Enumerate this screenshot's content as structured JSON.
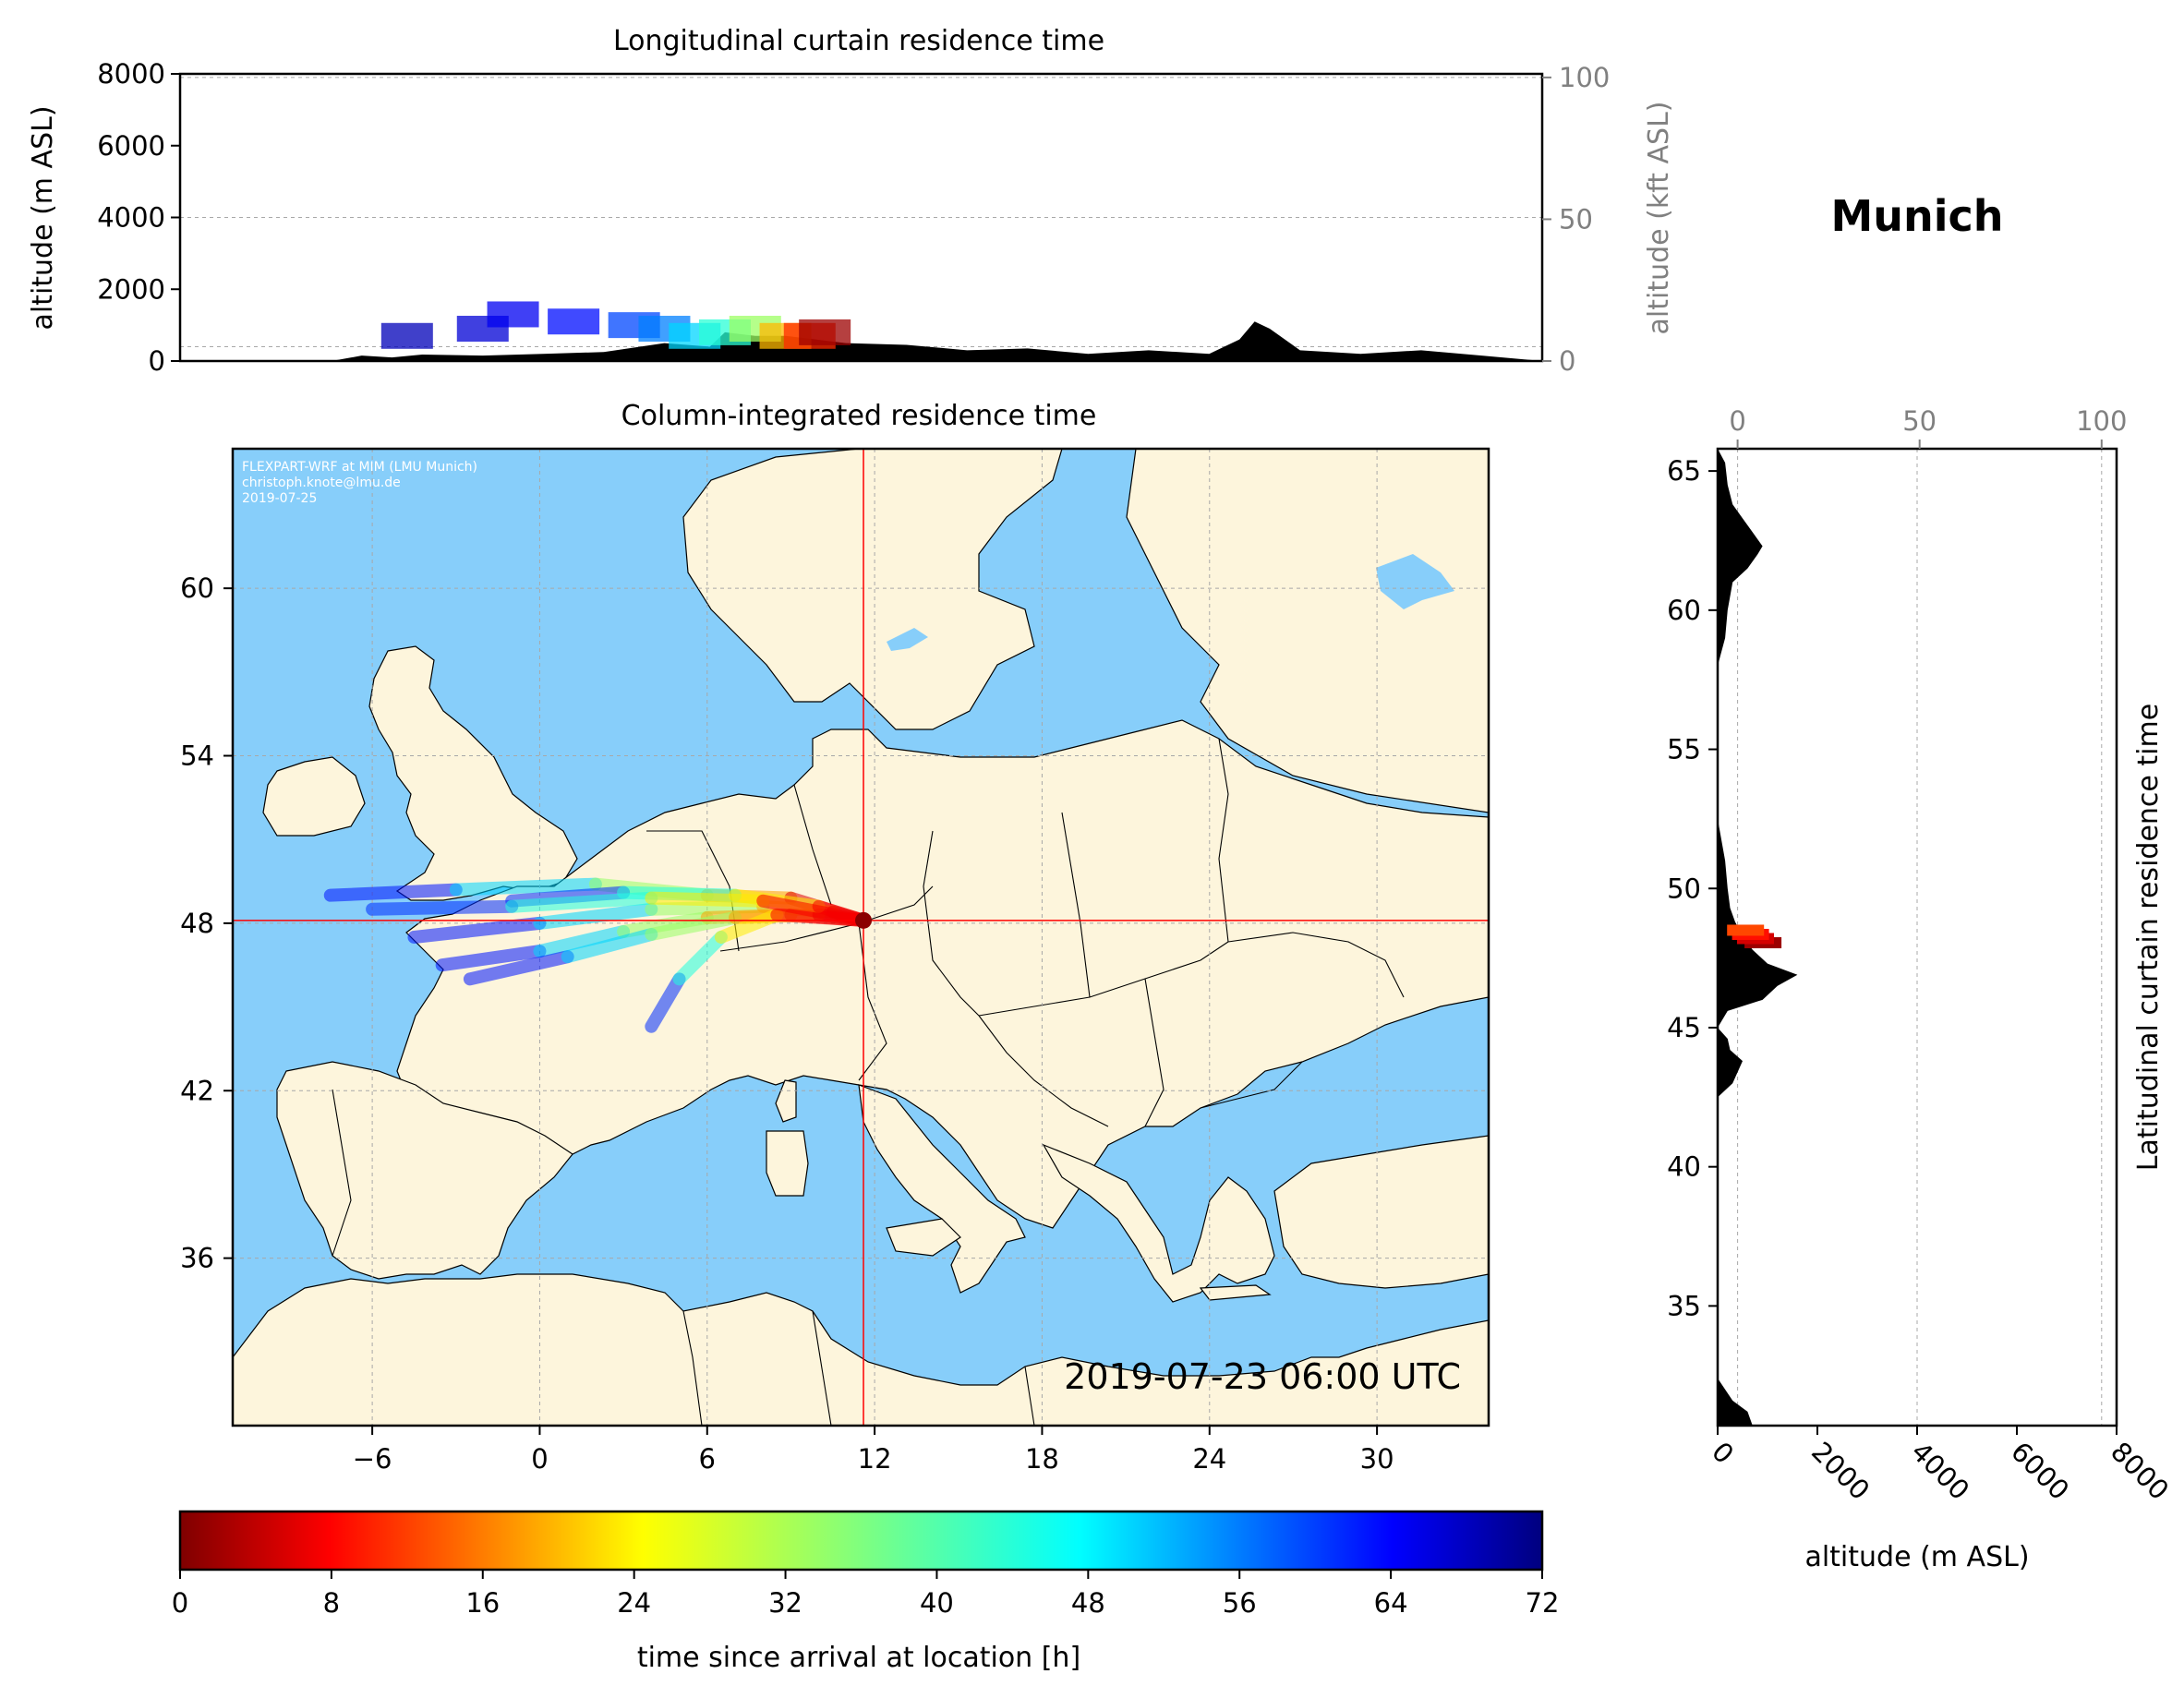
{
  "station": "Munich",
  "timestamp": "2019-07-23 06:00 UTC",
  "watermark": [
    "FLEXPART-WRF at MIM (LMU Munich)",
    "christoph.knote@lmu.de",
    "2019-07-25"
  ],
  "colors": {
    "ocean": "#87cefa",
    "land": "#fdf5dc",
    "terrain": "#000000",
    "crosshair": "#ff0000",
    "colormap": "jet_r"
  },
  "chart_data": [
    {
      "id": "longitudinal",
      "type": "area",
      "title": "Longitudinal curtain residence time",
      "ylabel": "altitude (m ASL)",
      "ylabel_right": "altitude (kft ASL)",
      "xlim": [
        -10,
        35
      ],
      "ylim": [
        0,
        8000
      ],
      "yticks": [
        0,
        2000,
        4000,
        6000,
        8000
      ],
      "yticks_right": [
        0,
        50,
        100
      ],
      "grid": true,
      "terrain": {
        "x": [
          -10,
          -5,
          -4,
          -3,
          -2,
          0,
          2,
          4,
          6,
          7.5,
          8,
          9,
          10,
          11,
          12,
          14,
          16,
          18,
          20,
          22,
          24,
          25,
          25.5,
          26,
          27,
          29,
          31,
          33,
          35
        ],
        "y": [
          0,
          0,
          150,
          100,
          180,
          150,
          200,
          250,
          500,
          400,
          800,
          700,
          700,
          600,
          500,
          450,
          300,
          350,
          200,
          300,
          200,
          600,
          1100,
          900,
          300,
          200,
          300,
          150,
          0
        ]
      },
      "plume": [
        {
          "x": -2.5,
          "alt": 700,
          "age": 68
        },
        {
          "x": 0,
          "alt": 900,
          "age": 66
        },
        {
          "x": 1,
          "alt": 1300,
          "age": 64
        },
        {
          "x": 3,
          "alt": 1100,
          "age": 62
        },
        {
          "x": 5,
          "alt": 1000,
          "age": 58
        },
        {
          "x": 6,
          "alt": 900,
          "age": 54
        },
        {
          "x": 7,
          "alt": 700,
          "age": 48
        },
        {
          "x": 8,
          "alt": 800,
          "age": 42
        },
        {
          "x": 9,
          "alt": 900,
          "age": 34
        },
        {
          "x": 10,
          "alt": 700,
          "age": 22
        },
        {
          "x": 10.8,
          "alt": 700,
          "age": 12
        },
        {
          "x": 11.3,
          "alt": 800,
          "age": 2
        }
      ]
    },
    {
      "id": "column",
      "type": "heatmap",
      "title": "Column-integrated residence time",
      "xlim": [
        -11,
        34
      ],
      "ylim": [
        30,
        65
      ],
      "xticks": [
        -6,
        0,
        6,
        12,
        18,
        24,
        30
      ],
      "yticks": [
        36,
        42,
        48,
        54,
        60
      ],
      "grid": true,
      "release_point": {
        "lon": 11.6,
        "lat": 48.1
      },
      "trajectories": [
        [
          [
            -7.5,
            49.0
          ],
          [
            -3,
            49.2
          ],
          [
            2,
            49.4
          ],
          [
            6,
            49.0
          ],
          [
            9,
            48.9
          ],
          [
            11.6,
            48.1
          ]
        ],
        [
          [
            -4.5,
            47.5
          ],
          [
            0,
            48.0
          ],
          [
            4,
            48.5
          ],
          [
            8,
            48.6
          ],
          [
            10.5,
            48.4
          ],
          [
            11.6,
            48.1
          ]
        ],
        [
          [
            -3.5,
            46.5
          ],
          [
            0,
            47.0
          ],
          [
            3,
            47.7
          ],
          [
            6,
            48.2
          ],
          [
            9,
            48.3
          ],
          [
            11.6,
            48.1
          ]
        ],
        [
          [
            -2.5,
            46.0
          ],
          [
            1,
            46.8
          ],
          [
            4,
            47.6
          ],
          [
            7,
            48.2
          ],
          [
            10,
            48.3
          ],
          [
            11.6,
            48.1
          ]
        ],
        [
          [
            4.0,
            44.3
          ],
          [
            5,
            46.0
          ],
          [
            6.5,
            47.5
          ],
          [
            8.5,
            48.3
          ],
          [
            11.6,
            48.1
          ]
        ],
        [
          [
            -1.0,
            48.8
          ],
          [
            3,
            49.1
          ],
          [
            7,
            49.0
          ],
          [
            10,
            48.6
          ],
          [
            11.6,
            48.1
          ]
        ],
        [
          [
            -6.0,
            48.5
          ],
          [
            -1,
            48.6
          ],
          [
            4,
            48.9
          ],
          [
            8,
            48.8
          ],
          [
            11.6,
            48.1
          ]
        ]
      ]
    },
    {
      "id": "latitudinal",
      "type": "area",
      "ylabel": "Latitudinal curtain residence time",
      "xlabel": "altitude (m ASL)",
      "xlim": [
        0,
        8000
      ],
      "ylim": [
        30.7,
        65.8
      ],
      "xticks": [
        0,
        2000,
        4000,
        6000,
        8000
      ],
      "xticks_top": [
        0,
        50,
        100
      ],
      "yticks": [
        35,
        40,
        45,
        50,
        55,
        60,
        65
      ],
      "grid": true,
      "terrain": {
        "lat": [
          30.7,
          31.2,
          31.6,
          32.4,
          33,
          42.5,
          43,
          43.8,
          44.2,
          44.6,
          45,
          45.6,
          46,
          46.5,
          46.9,
          47.3,
          47.8,
          48.3,
          48.8,
          49.3,
          50,
          51,
          51.5,
          52,
          52.5,
          58,
          59,
          60,
          61,
          61.5,
          62,
          62.3,
          62.8,
          63.3,
          63.8,
          64.5,
          65.3,
          65.8
        ],
        "alt": [
          700,
          600,
          300,
          0,
          0,
          0,
          300,
          500,
          250,
          200,
          0,
          200,
          900,
          1200,
          1600,
          1000,
          700,
          500,
          350,
          250,
          200,
          150,
          100,
          50,
          0,
          0,
          150,
          200,
          300,
          600,
          800,
          900,
          700,
          500,
          300,
          200,
          150,
          0
        ]
      },
      "plume": [
        {
          "lat": 48.05,
          "alt": 650,
          "age": 2
        },
        {
          "lat": 48.2,
          "alt": 500,
          "age": 6
        },
        {
          "lat": 48.35,
          "alt": 400,
          "age": 10
        },
        {
          "lat": 48.5,
          "alt": 300,
          "age": 14
        }
      ]
    },
    {
      "id": "colorbar",
      "type": "heatmap",
      "xlabel": "time since arrival at location [h]",
      "xlim": [
        0,
        72
      ],
      "xticks": [
        0,
        8,
        16,
        24,
        32,
        40,
        48,
        56,
        64,
        72
      ]
    }
  ]
}
